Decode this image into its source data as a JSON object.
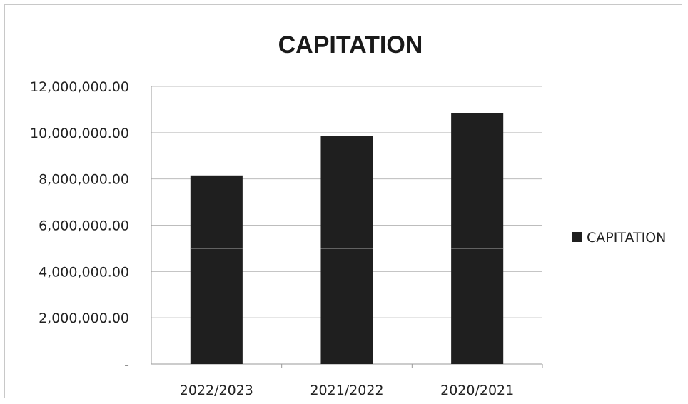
{
  "chart_data": {
    "type": "bar",
    "title": "CAPITATION",
    "categories": [
      "2022/2023",
      "2021/2022",
      "2020/2021"
    ],
    "series": [
      {
        "name": "CAPITATION",
        "values": [
          8150000,
          9850000,
          10850000
        ]
      }
    ],
    "ylim": [
      0,
      12000000
    ],
    "yticks": [
      0,
      2000000,
      4000000,
      6000000,
      8000000,
      10000000,
      12000000
    ],
    "ytick_labels": [
      "-",
      "2,000,000.00",
      "4,000,000.00",
      "6,000,000.00",
      "8,000,000.00",
      "10,000,000.00",
      "12,000,000.00"
    ],
    "xlabel": "",
    "ylabel": "",
    "grid": true,
    "legend": "right",
    "bar_color": "#1f1f1f",
    "grid_color": "#bdbdbd"
  }
}
